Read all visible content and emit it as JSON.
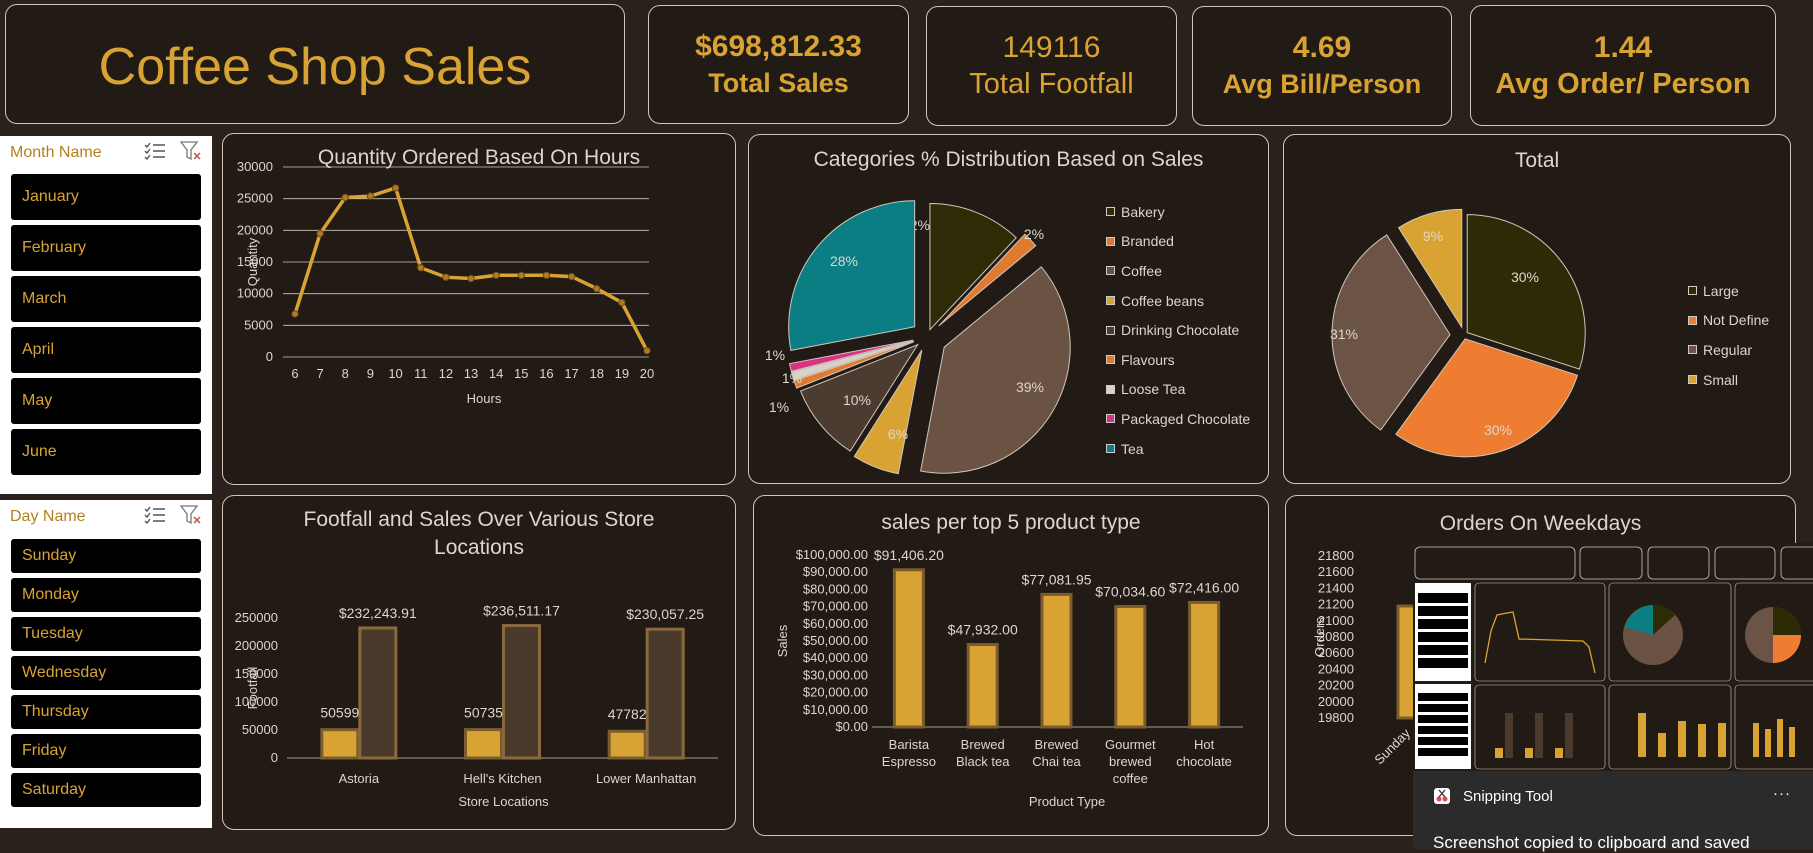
{
  "header": {
    "title": "Coffee Shop Sales"
  },
  "kpis": [
    {
      "value": "$698,812.33",
      "label": "Total Sales"
    },
    {
      "value": "149116",
      "label": "Total Footfall"
    },
    {
      "value": "4.69",
      "label": "Avg Bill/Person"
    },
    {
      "value": "1.44",
      "label": "Avg Order/ Person"
    }
  ],
  "month_slicer": {
    "title": "Month Name",
    "items": [
      "January",
      "February",
      "March",
      "April",
      "May",
      "June"
    ]
  },
  "day_slicer": {
    "title": "Day Name",
    "items": [
      "Sunday",
      "Monday",
      "Tuesday",
      "Wednesday",
      "Thursday",
      "Friday",
      "Saturday"
    ]
  },
  "colors": {
    "gold": "#d9a334",
    "bg": "#221a15"
  },
  "chart_data": [
    {
      "type": "line",
      "title": "Quantity Ordered Based On Hours",
      "xlabel": "Hours",
      "ylabel": "Quantity",
      "x": [
        6,
        7,
        8,
        9,
        10,
        11,
        12,
        13,
        14,
        15,
        16,
        17,
        18,
        19,
        20
      ],
      "values": [
        6800,
        19500,
        25200,
        25400,
        26700,
        14100,
        12600,
        12400,
        12900,
        12900,
        12900,
        12700,
        10800,
        8600,
        1000
      ],
      "ylim": [
        0,
        30000
      ],
      "yticks": [
        "0",
        "5000",
        "10000",
        "15000",
        "20000",
        "25000",
        "30000"
      ],
      "grid": true
    },
    {
      "type": "pie",
      "title": "Categories % Distribution Based on Sales",
      "labels": [
        "Bakery",
        "Branded",
        "Coffee",
        "Coffee beans",
        "Drinking Chocolate",
        "Flavours",
        "Loose Tea",
        "Packaged Chocolate",
        "Tea"
      ],
      "values": [
        12,
        2,
        39,
        6,
        10,
        1,
        1,
        1,
        28
      ],
      "data_labels": [
        "12%",
        "2%",
        "39%",
        "6%",
        "10%",
        "1%",
        "1%",
        "1%",
        "28%"
      ],
      "colors": [
        "#2d2c06",
        "#e07a2e",
        "#6b5344",
        "#d9a334",
        "#4b3b30",
        "#e07a2e",
        "#d9d0c7",
        "#d63384",
        "#0b7e84"
      ]
    },
    {
      "type": "pie",
      "title": "Total",
      "labels": [
        "Large",
        "Not Define",
        "Regular",
        "Small"
      ],
      "values": [
        30,
        30,
        31,
        9
      ],
      "data_labels": [
        "30%",
        "30%",
        "31%",
        "9%"
      ],
      "colors": [
        "#2d2a06",
        "#ee7d31",
        "#6b5445",
        "#d9a334"
      ]
    },
    {
      "type": "bar",
      "title": "Footfall and Sales Over Various Store Locations",
      "xlabel": "Store Locations",
      "ylabel": "Footfall",
      "categories": [
        "Astoria",
        "Hell's Kitchen",
        "Lower Manhattan"
      ],
      "series": [
        {
          "values": [
            50599,
            50735,
            47782
          ],
          "labels": [
            "50599",
            "50735",
            "47782"
          ]
        },
        {
          "values": [
            232243.91,
            236511.17,
            230057.25
          ],
          "labels": [
            "$232,243.91",
            "$236,511.17",
            "$230,057.25"
          ]
        }
      ],
      "ylim": [
        0,
        250000
      ],
      "yticks": [
        "0",
        "50000",
        "100000",
        "150000",
        "200000",
        "250000"
      ]
    },
    {
      "type": "bar",
      "title": "sales per top 5 product type",
      "xlabel": "Product Type",
      "ylabel": "Sales",
      "categories": [
        "Barista Espresso",
        "Brewed Black tea",
        "Brewed Chai tea",
        "Gourmet brewed coffee",
        "Hot chocolate"
      ],
      "values": [
        91406.2,
        47932.0,
        77081.95,
        70034.6,
        72416.0
      ],
      "data_labels": [
        "$91,406.20",
        "$47,932.00",
        "$77,081.95",
        "$70,034.60",
        "$72,416.00"
      ],
      "ylim": [
        0,
        100000
      ],
      "yticks": [
        "$0.00",
        "$10,000.00",
        "$20,000.00",
        "$30,000.00",
        "$40,000.00",
        "$50,000.00",
        "$60,000.00",
        "$70,000.00",
        "$80,000.00",
        "$90,000.00",
        "$100,000.00"
      ]
    },
    {
      "type": "bar",
      "title": "Orders On Weekdays",
      "ylabel": "Orders",
      "categories": [
        "Sunday"
      ],
      "ylim": [
        19800,
        21800
      ],
      "yticks": [
        "19800",
        "20000",
        "20200",
        "20400",
        "20600",
        "20800",
        "21000",
        "21200",
        "21400",
        "21600",
        "21800"
      ]
    }
  ],
  "snipping_tool": {
    "app_name": "Snipping Tool",
    "more": "···",
    "message": "Screenshot copied to clipboard and saved"
  }
}
